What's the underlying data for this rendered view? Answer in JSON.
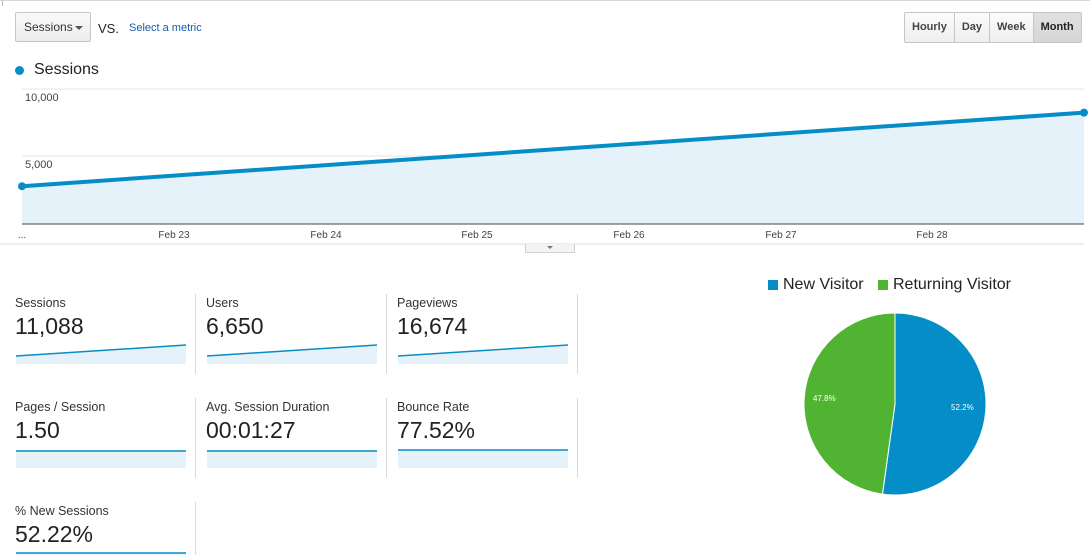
{
  "toolbar": {
    "metric_select": "Sessions",
    "vs_label": "VS.",
    "select_metric_link": "Select a metric",
    "granularity": [
      {
        "label": "Hourly",
        "active": false
      },
      {
        "label": "Day",
        "active": false
      },
      {
        "label": "Week",
        "active": false
      },
      {
        "label": "Month",
        "active": true
      }
    ]
  },
  "main_chart": {
    "legend_label": "Sessions",
    "color": "#058dc7",
    "start_label": "...",
    "y_ticks": [
      "10,000",
      "5,000"
    ],
    "x_ticks": [
      "Feb 23",
      "Feb 24",
      "Feb 25",
      "Feb 26",
      "Feb 27",
      "Feb 28"
    ]
  },
  "chart_data": {
    "type": "area",
    "title": "Sessions",
    "x": [
      "start",
      "end"
    ],
    "series": [
      {
        "name": "Sessions",
        "values": [
          2800,
          8250
        ]
      }
    ],
    "ylim": [
      0,
      10000
    ],
    "y_ticks": [
      5000,
      10000
    ],
    "x_tick_labels": [
      "Feb 23",
      "Feb 24",
      "Feb 25",
      "Feb 26",
      "Feb 27",
      "Feb 28"
    ]
  },
  "scorecards": [
    {
      "title": "Sessions",
      "value": "11,088",
      "spark": "up"
    },
    {
      "title": "Users",
      "value": "6,650",
      "spark": "up"
    },
    {
      "title": "Pageviews",
      "value": "16,674",
      "spark": "up"
    },
    {
      "title": "Pages / Session",
      "value": "1.50",
      "spark": "flat"
    },
    {
      "title": "Avg. Session Duration",
      "value": "00:01:27",
      "spark": "flat"
    },
    {
      "title": "Bounce Rate",
      "value": "77.52%",
      "spark": "flat"
    },
    {
      "title": "% New Sessions",
      "value": "52.22%",
      "spark": "flat"
    }
  ],
  "pie": {
    "legend": [
      {
        "label": "New Visitor",
        "color": "#058dc7"
      },
      {
        "label": "Returning Visitor",
        "color": "#50b432"
      }
    ],
    "slices": [
      {
        "name": "New Visitor",
        "value": 52.2,
        "label": "52.2%",
        "color": "#058dc7"
      },
      {
        "name": "Returning Visitor",
        "value": 47.8,
        "label": "47.8%",
        "color": "#50b432"
      }
    ]
  }
}
